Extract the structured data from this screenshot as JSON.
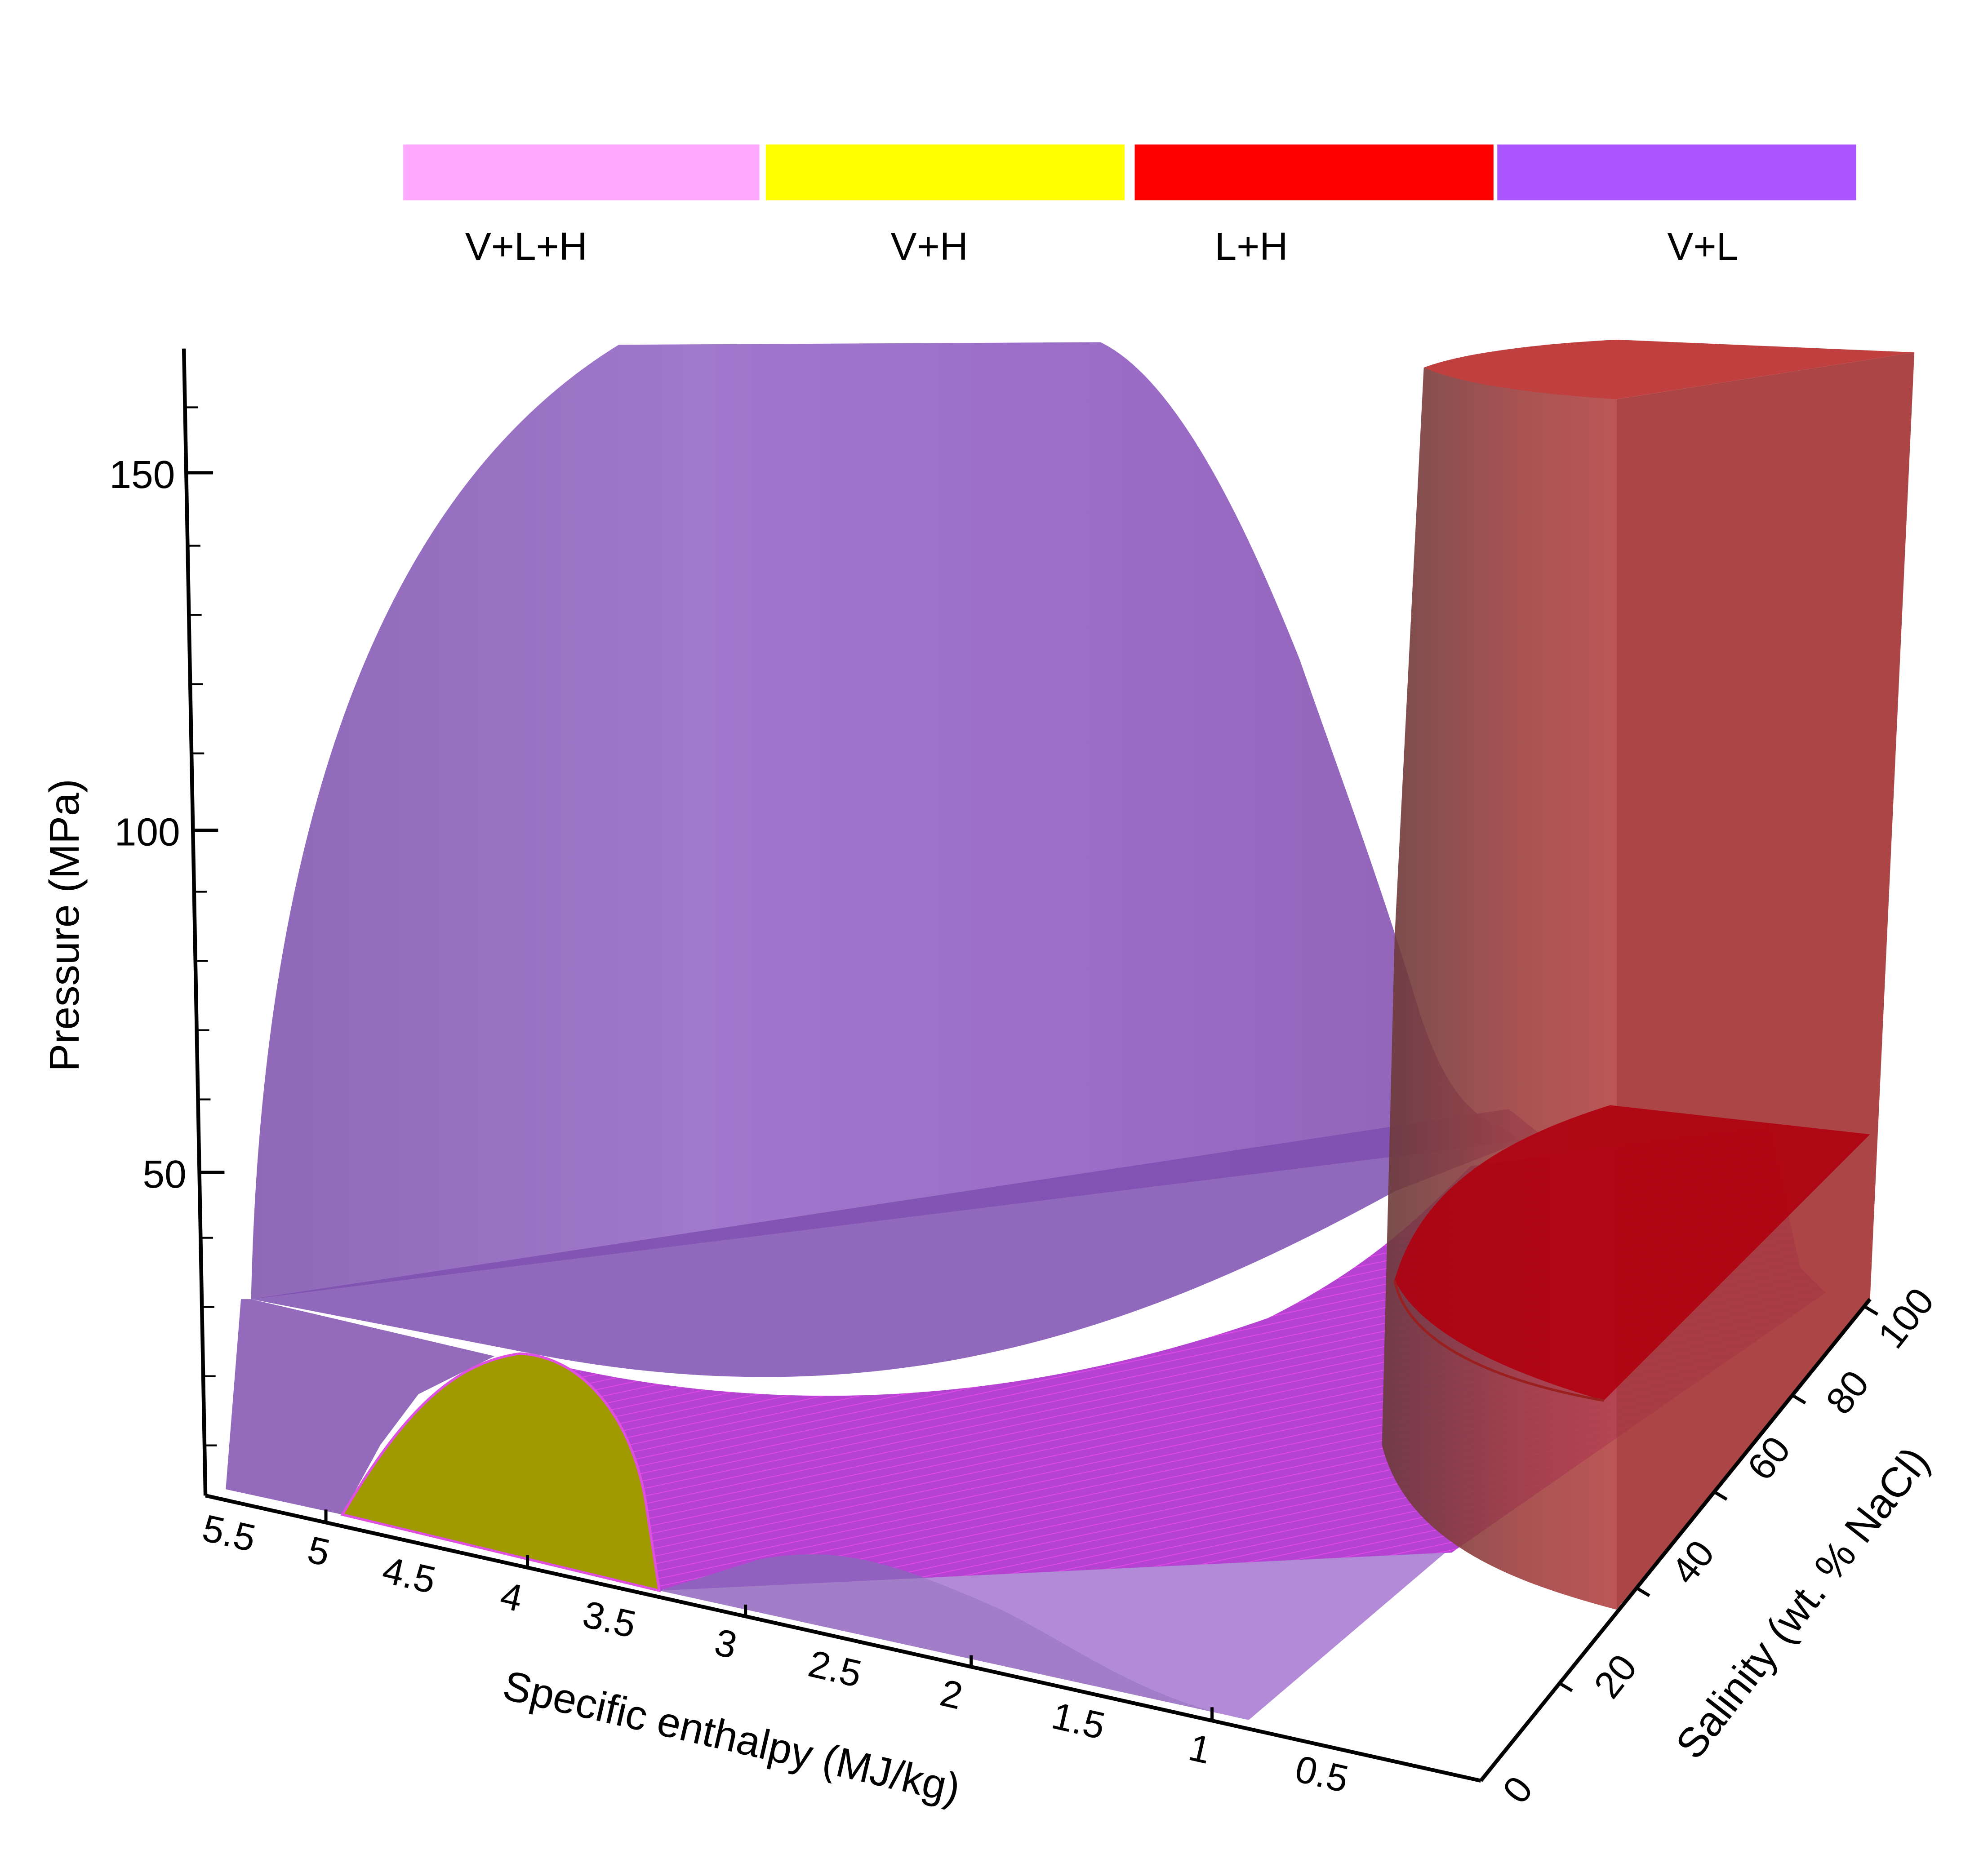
{
  "chart_data": {
    "type": "3d-surface",
    "title": "",
    "legend": {
      "placement": "top",
      "items": [
        {
          "label": "V+L+H",
          "color": "#FFAAFF"
        },
        {
          "label": "V+H",
          "color": "#FFFF00"
        },
        {
          "label": "L+H",
          "color": "#FF0000"
        },
        {
          "label": "V+L",
          "color": "#AA55FF"
        }
      ]
    },
    "axes": {
      "x": {
        "label": "Specific enthalpy (MJ/kg)",
        "range": [
          0,
          5.6
        ],
        "reversed": true,
        "ticks": [
          {
            "value": 5.5,
            "label": "5.5"
          },
          {
            "value": 5,
            "label": "5"
          },
          {
            "value": 4.5,
            "label": "4.5"
          },
          {
            "value": 4,
            "label": "4"
          },
          {
            "value": 3.5,
            "label": "3.5"
          },
          {
            "value": 3,
            "label": "3"
          },
          {
            "value": 2.5,
            "label": "2.5"
          },
          {
            "value": 2,
            "label": "2"
          },
          {
            "value": 1.5,
            "label": "1.5"
          },
          {
            "value": 1,
            "label": "1"
          },
          {
            "value": 0.5,
            "label": "0.5"
          }
        ]
      },
      "y": {
        "label": "Salinity (wt. % NaCl)",
        "range": [
          0,
          100
        ],
        "ticks": [
          {
            "value": 0,
            "label": "0"
          },
          {
            "value": 20,
            "label": "20"
          },
          {
            "value": 40,
            "label": "40"
          },
          {
            "value": 60,
            "label": "60"
          },
          {
            "value": 80,
            "label": "80"
          },
          {
            "value": 100,
            "label": "100"
          }
        ]
      },
      "z": {
        "label": "Pressure (MPa)",
        "range": [
          0,
          170
        ],
        "ticks": [
          {
            "value": 50,
            "label": "50"
          },
          {
            "value": 100,
            "label": "100"
          },
          {
            "value": 150,
            "label": "150"
          }
        ],
        "minor_step": 10
      }
    },
    "phase_regions": [
      {
        "name": "V+L",
        "color": "#9966CC",
        "pressure_max": 170
      },
      {
        "name": "V+H",
        "color": "#A09A00",
        "pressure_max": 25
      },
      {
        "name": "V+L+H",
        "color": "#CC33DD",
        "pressure_max": 40
      },
      {
        "name": "L+H",
        "color": "#C0262C",
        "pressure_max": 170
      }
    ],
    "grid": false
  }
}
